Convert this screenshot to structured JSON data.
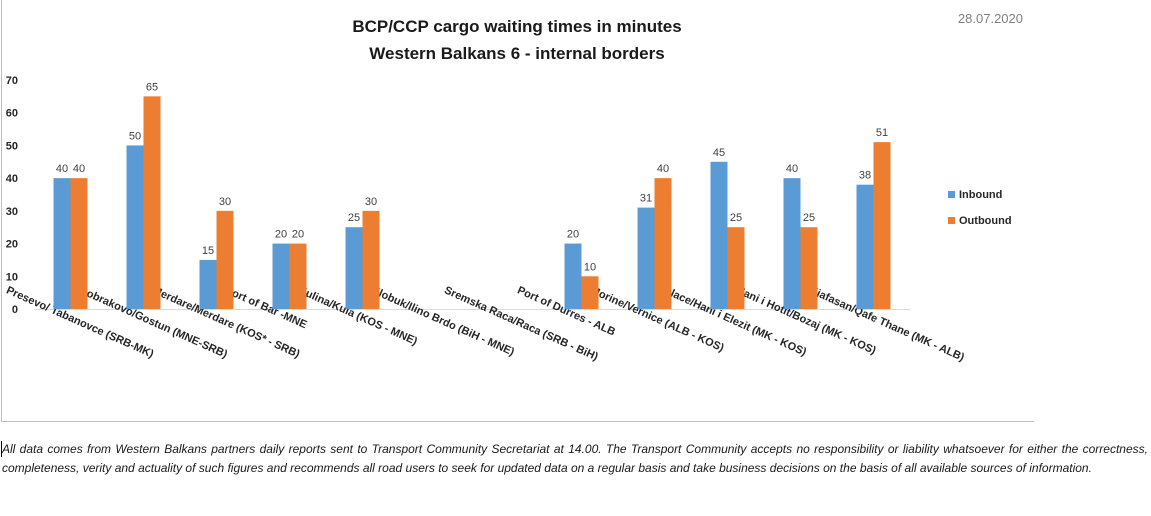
{
  "date": "28.07.2020",
  "chart_data": {
    "type": "bar",
    "title": "BCP/CCP cargo waiting times in minutes",
    "subtitle": "Western Balkans 6 - internal borders",
    "xlabel": "",
    "ylabel": "",
    "ylim": [
      0,
      70
    ],
    "yticks": [
      0,
      10,
      20,
      30,
      40,
      50,
      60,
      70
    ],
    "grid": false,
    "legend_position": "right",
    "categories": [
      "Presevo/ Tabanovce (SRB-MK)",
      "Dobrakovo/Gostun (MNE-SRB)",
      "Merdare/Merdare (KOS* - SRB)",
      "Port of Bar -MNE",
      "Kulina/Kula (KOS - MNE)",
      "Klobuk/Ilino Brdo (BiH - MNE)",
      "Sremska Raca/Raca (SRB - BiH)",
      "Port of Durres - ALB",
      "Morine/Vernice (ALB - KOS)",
      "Blace/Hani i Elezit (MK - KOS)",
      "Hani i Hotit/Bozaj (MK - KOS)",
      "Kjafasan/Qafe Thane (MK - ALB)"
    ],
    "series": [
      {
        "name": "Inbound",
        "color": "#5b9bd5",
        "values": [
          40,
          50,
          15,
          20,
          25,
          null,
          null,
          20,
          31,
          45,
          40,
          38
        ]
      },
      {
        "name": "Outbound",
        "color": "#ed7d31",
        "values": [
          40,
          65,
          30,
          20,
          30,
          null,
          null,
          10,
          40,
          25,
          25,
          51
        ]
      }
    ]
  },
  "disclaimer": "All data comes from Western Balkans partners daily reports sent to Transport Community Secretariat at 14.00. The Transport Community accepts no responsibility or liability whatsoever for either the correctness, completeness, verity and actuality of such figures and recommends all road users to seek for updated data on a regular basis and take business decisions on the basis of all available sources of information."
}
